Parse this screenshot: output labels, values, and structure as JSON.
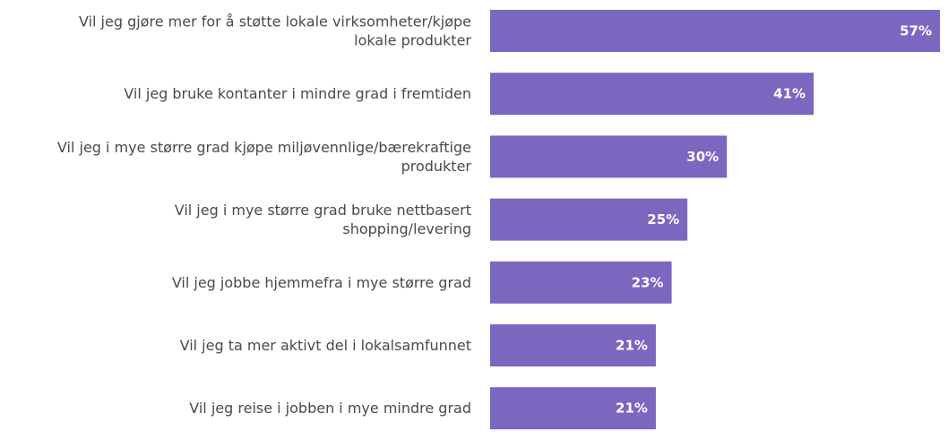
{
  "colors": {
    "bar": "#7b66c0",
    "label_text": "#4a4a4a",
    "value_text": "#ffffff",
    "background": "#ffffff"
  },
  "chart_data": {
    "type": "bar",
    "orientation": "horizontal",
    "categories": [
      [
        "Vil jeg gjøre mer for å støtte lokale virksomheter/kjøpe",
        "lokale produkter"
      ],
      [
        "Vil jeg bruke kontanter i mindre grad i fremtiden"
      ],
      [
        "Vil jeg i mye større grad kjøpe miljøvennlige/bærekraftige",
        "produkter"
      ],
      [
        "Vil jeg i mye større grad bruke nettbasert",
        "shopping/levering"
      ],
      [
        "Vil jeg jobbe hjemmefra i mye større grad"
      ],
      [
        "Vil jeg ta mer aktivt del i lokalsamfunnet"
      ],
      [
        "Vil jeg reise i jobben i mye mindre grad"
      ]
    ],
    "values": [
      57,
      41,
      30,
      25,
      23,
      21,
      21
    ],
    "value_labels": [
      "57%",
      "41%",
      "30%",
      "25%",
      "23%",
      "21%",
      "21%"
    ],
    "title": "",
    "xlabel": "",
    "ylabel": "",
    "xlim": [
      0,
      57
    ],
    "grid": false,
    "legend": "none"
  }
}
